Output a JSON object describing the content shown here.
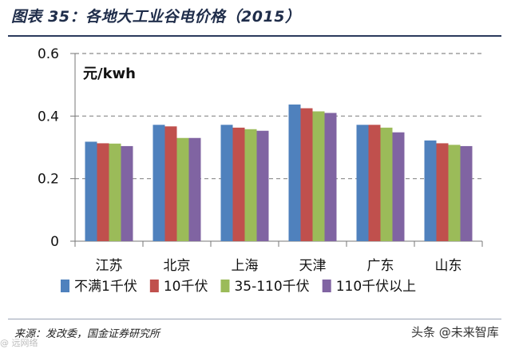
{
  "header": {
    "title": "图表 35：各地大工业谷电价格（2015）"
  },
  "footer": {
    "source": "来源：发改委，国金证券研究所",
    "watermark": "头条 @未来智库",
    "watermark_left": "@ 远网络"
  },
  "chart_data": {
    "type": "bar",
    "title": "图表 35：各地大工业谷电价格（2015）",
    "ylabel": "元/kwh",
    "xlabel": "",
    "ylim": [
      0,
      0.6
    ],
    "yticks": [
      0,
      0.2,
      0.4,
      0.6
    ],
    "ytick_labels": [
      "0",
      "0.2",
      "0.4",
      "0.6"
    ],
    "grid": "horizontal-dashed",
    "legend_position": "bottom",
    "categories": [
      "江苏",
      "北京",
      "上海",
      "天津",
      "广东",
      "山东"
    ],
    "series": [
      {
        "name": "不满1千伏",
        "color": "#4f81bd",
        "values": [
          0.318,
          0.372,
          0.372,
          0.437,
          0.372,
          0.322
        ]
      },
      {
        "name": "10千伏",
        "color": "#c0504d",
        "values": [
          0.313,
          0.367,
          0.363,
          0.425,
          0.372,
          0.313
        ]
      },
      {
        "name": "35-110千伏",
        "color": "#9bbb59",
        "values": [
          0.312,
          0.33,
          0.358,
          0.415,
          0.363,
          0.308
        ]
      },
      {
        "name": "110千伏以上",
        "color": "#8064a2",
        "values": [
          0.304,
          0.33,
          0.353,
          0.41,
          0.348,
          0.304
        ]
      }
    ]
  }
}
